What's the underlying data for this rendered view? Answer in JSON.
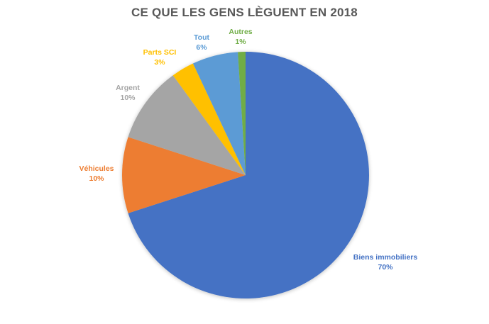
{
  "chart_data": {
    "type": "pie",
    "title": "CE QUE LES GENS LÈGUENT EN 2018",
    "start_angle_deg": 0,
    "direction": "clockwise",
    "legend": "none (data labels)",
    "slices": [
      {
        "label": "Biens immobiliers",
        "value": 70,
        "display": "70%",
        "color": "#4472C4"
      },
      {
        "label": "Véhicules",
        "value": 10,
        "display": "10%",
        "color": "#ED7D31"
      },
      {
        "label": "Argent",
        "value": 10,
        "display": "10%",
        "color": "#A5A5A5"
      },
      {
        "label": "Parts SCI",
        "value": 3,
        "display": "3%",
        "color": "#FFC000"
      },
      {
        "label": "Tout",
        "value": 6,
        "display": "6%",
        "color": "#5B9BD5"
      },
      {
        "label": "Autres",
        "value": 1,
        "display": "1%",
        "color": "#70AD47"
      }
    ]
  },
  "labels": {
    "biens": {
      "name": "Biens immobiliers",
      "pct": "70%"
    },
    "vehicules": {
      "name": "Véhicules",
      "pct": "10%"
    },
    "argent": {
      "name": "Argent",
      "pct": "10%"
    },
    "parts": {
      "name": "Parts SCI",
      "pct": "3%"
    },
    "tout": {
      "name": "Tout",
      "pct": "6%"
    },
    "autres": {
      "name": "Autres",
      "pct": "1%"
    }
  }
}
